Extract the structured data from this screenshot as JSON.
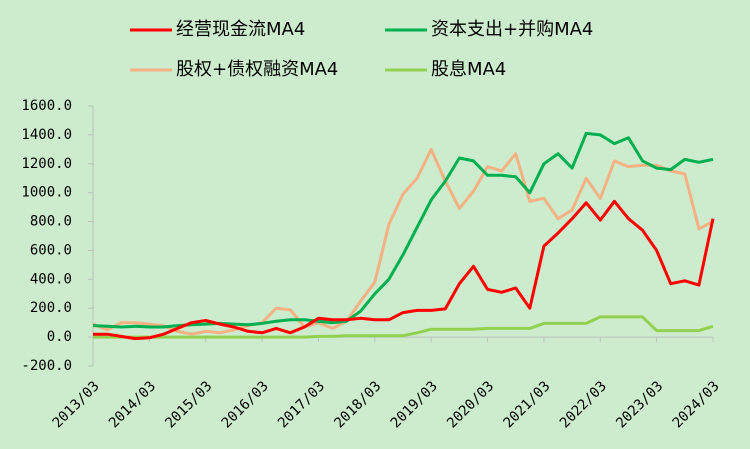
{
  "chart_data": {
    "type": "line",
    "categories": [
      "2013/03",
      null,
      null,
      null,
      "2014/03",
      null,
      null,
      null,
      "2015/03",
      null,
      null,
      null,
      "2016/03",
      null,
      null,
      null,
      "2017/03",
      null,
      null,
      null,
      "2018/03",
      null,
      null,
      null,
      "2019/03",
      null,
      null,
      null,
      "2020/03",
      null,
      null,
      null,
      "2021/03",
      null,
      null,
      null,
      "2022/03",
      null,
      null,
      null,
      "2023/03",
      null,
      null,
      null,
      "2024/03"
    ],
    "series": [
      {
        "name": "经营现金流MA4",
        "color": "#ff0000",
        "values": [
          20,
          20,
          5,
          -10,
          -5,
          20,
          60,
          100,
          115,
          90,
          70,
          40,
          30,
          60,
          30,
          70,
          130,
          120,
          120,
          130,
          120,
          120,
          170,
          185,
          185,
          195,
          370,
          490,
          330,
          310,
          340,
          200,
          630,
          720,
          820,
          930,
          810,
          940,
          820,
          740,
          600,
          370,
          390,
          360,
          820
        ]
      },
      {
        "name": "资本支出+并购MA4",
        "color": "#00b050",
        "values": [
          80,
          75,
          70,
          75,
          70,
          70,
          80,
          85,
          90,
          95,
          90,
          85,
          95,
          110,
          120,
          120,
          110,
          100,
          110,
          180,
          300,
          400,
          570,
          760,
          950,
          1080,
          1240,
          1220,
          1120,
          1120,
          1110,
          1000,
          1200,
          1270,
          1170,
          1410,
          1400,
          1340,
          1380,
          1220,
          1170,
          1160,
          1230,
          1210,
          1230
        ]
      },
      {
        "name": "股权+债权融资MA4",
        "color": "#f4b183",
        "values": [
          90,
          50,
          100,
          100,
          90,
          80,
          40,
          20,
          40,
          30,
          50,
          80,
          100,
          200,
          190,
          70,
          100,
          60,
          110,
          250,
          380,
          780,
          990,
          1100,
          1300,
          1080,
          890,
          1010,
          1180,
          1150,
          1270,
          940,
          960,
          820,
          880,
          1100,
          960,
          1220,
          1180,
          1190,
          1190,
          1150,
          1130,
          750,
          800
        ]
      },
      {
        "name": "股息MA4",
        "color": "#92d050",
        "values": [
          0,
          0,
          0,
          0,
          0,
          0,
          0,
          0,
          0,
          0,
          0,
          0,
          0,
          0,
          0,
          0,
          5,
          5,
          10,
          10,
          10,
          10,
          10,
          30,
          55,
          55,
          55,
          55,
          60,
          60,
          60,
          60,
          95,
          95,
          95,
          95,
          140,
          140,
          140,
          140,
          45,
          45,
          45,
          45,
          75
        ]
      }
    ],
    "ylim": [
      -200,
      1600
    ],
    "yticks": [
      {
        "value": -200,
        "label": "-200.0"
      },
      {
        "value": 0,
        "label": "0.0"
      },
      {
        "value": 200,
        "label": "200.0"
      },
      {
        "value": 400,
        "label": "400.0"
      },
      {
        "value": 600,
        "label": "600.0"
      },
      {
        "value": 800,
        "label": "800.0"
      },
      {
        "value": 1000,
        "label": "1000.0"
      },
      {
        "value": 1200,
        "label": "1200.0"
      },
      {
        "value": 1400,
        "label": "1400.0"
      },
      {
        "value": 1600,
        "label": "1600.0"
      }
    ],
    "legend": "top",
    "grid": false
  }
}
